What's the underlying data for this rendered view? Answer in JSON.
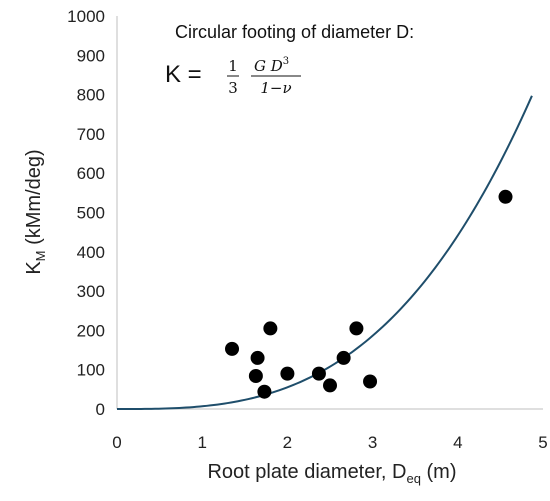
{
  "chart_data": {
    "type": "scatter",
    "xlabel": {
      "main": "Root plate diameter, D",
      "sub": "eq",
      "unit": " (m)"
    },
    "ylabel": {
      "main": "K",
      "sub": "M",
      "unit": " (kMm/deg)"
    },
    "xlim": [
      0,
      5
    ],
    "ylim": [
      0,
      1000
    ],
    "x_ticks": [
      0,
      1,
      2,
      3,
      4,
      5
    ],
    "y_ticks": [
      0,
      100,
      200,
      300,
      400,
      500,
      600,
      700,
      800,
      900,
      1000
    ],
    "grid": false,
    "legend": "none",
    "marker_color": "#000000",
    "curve_color": "#1f4e6b",
    "points": [
      {
        "x": 1.35,
        "y": 153
      },
      {
        "x": 1.63,
        "y": 84
      },
      {
        "x": 1.65,
        "y": 130
      },
      {
        "x": 1.73,
        "y": 44
      },
      {
        "x": 1.8,
        "y": 205
      },
      {
        "x": 2.0,
        "y": 90
      },
      {
        "x": 2.37,
        "y": 90
      },
      {
        "x": 2.5,
        "y": 60
      },
      {
        "x": 2.66,
        "y": 130
      },
      {
        "x": 2.81,
        "y": 205
      },
      {
        "x": 2.97,
        "y": 70
      },
      {
        "x": 4.56,
        "y": 540
      }
    ],
    "fit": {
      "form": "K = c * D^3",
      "c": 6.9,
      "x_range": [
        0,
        4.87
      ]
    },
    "annotation": {
      "line1": "Circular footing of diameter D:",
      "lhs": "K =",
      "num1": "1",
      "den1": "3",
      "num2": "G D",
      "num2_exp": "3",
      "den2": "1−ν"
    }
  }
}
